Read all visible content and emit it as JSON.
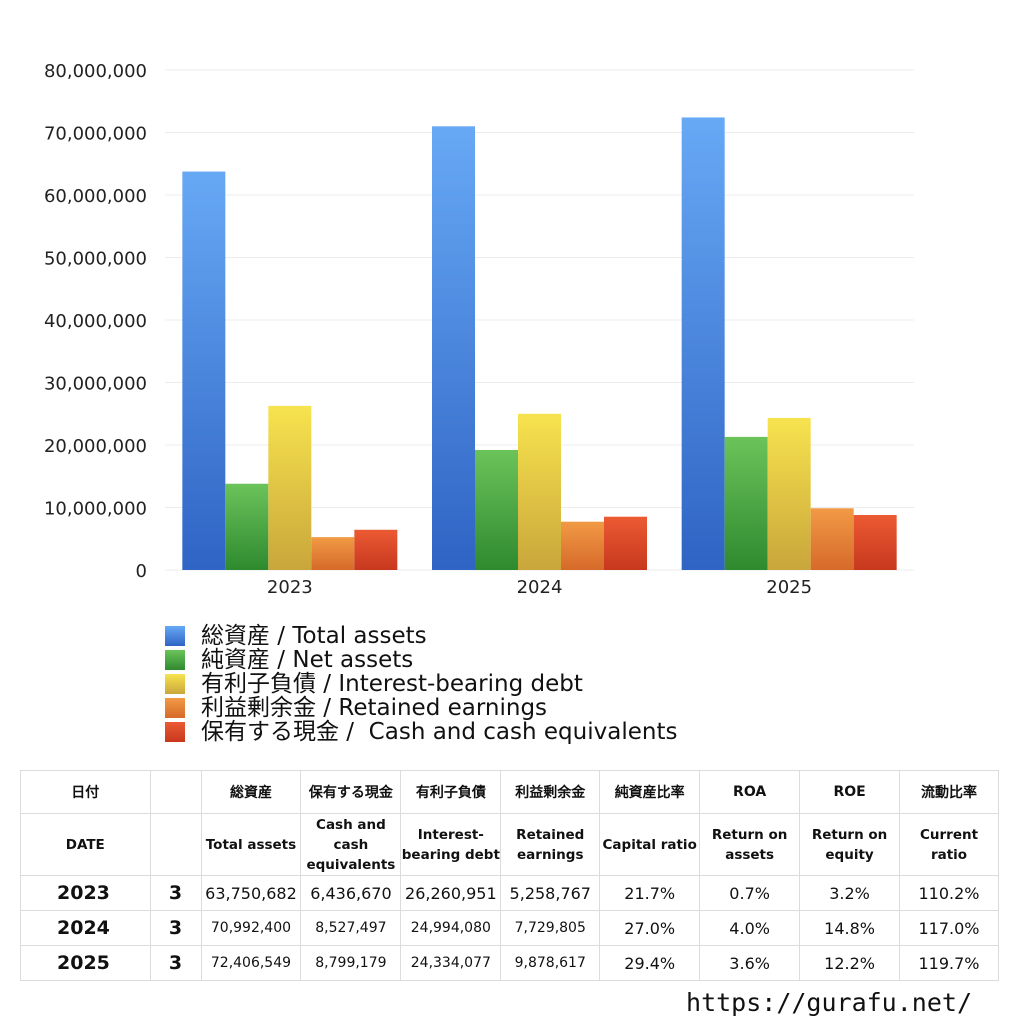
{
  "chart_data": {
    "type": "bar",
    "categories": [
      "2023",
      "2024",
      "2025"
    ],
    "ylim": [
      0,
      80000000
    ],
    "yticks": [
      0,
      10000000,
      20000000,
      30000000,
      40000000,
      50000000,
      60000000,
      70000000,
      80000000
    ],
    "ytick_labels": [
      "0",
      "10,000,000",
      "20,000,000",
      "30,000,000",
      "40,000,000",
      "50,000,000",
      "60,000,000",
      "70,000,000",
      "80,000,000"
    ],
    "grid": true,
    "legend_position": "bottom",
    "series": [
      {
        "name": "総資産 / Total assets",
        "values": [
          63750682,
          70992400,
          72406549
        ],
        "color_top": "#67a9f5",
        "color_bottom": "#2f63c4"
      },
      {
        "name": "純資産 / Net assets",
        "values": [
          13800000,
          19200000,
          21300000
        ],
        "color_top": "#6bc35a",
        "color_bottom": "#2f8a2f"
      },
      {
        "name": "有利子負債 / Interest-bearing debt",
        "values": [
          26260951,
          24994080,
          24334077
        ],
        "color_top": "#f7e34e",
        "color_bottom": "#c9a63b"
      },
      {
        "name": "利益剰余金 / Retained earnings",
        "values": [
          5258767,
          7729805,
          9878617
        ],
        "color_top": "#f19a45",
        "color_bottom": "#d66a2a"
      },
      {
        "name": "保有する現金 /  Cash and cash equivalents",
        "values": [
          6436670,
          8527497,
          8799179
        ],
        "color_top": "#ec5a33",
        "color_bottom": "#c7381e"
      }
    ]
  },
  "table": {
    "header_jp": [
      "日付",
      "",
      "総資産",
      "保有する現金",
      "有利子負債",
      "利益剰余金",
      "純資産比率",
      "ROA",
      "ROE",
      "流動比率"
    ],
    "header_en": [
      "DATE",
      "",
      "Total assets",
      "Cash and cash equivalents",
      "Interest-bearing debt",
      "Retained earnings",
      "Capital ratio",
      "Return on assets",
      "Return on equity",
      "Current ratio"
    ],
    "rows": [
      [
        "2023",
        "3",
        "63,750,682",
        "6,436,670",
        "26,260,951",
        "5,258,767",
        "21.7%",
        "0.7%",
        "3.2%",
        "110.2%"
      ],
      [
        "2024",
        "3",
        "70,992,400",
        "8,527,497",
        "24,994,080",
        "7,729,805",
        "27.0%",
        "4.0%",
        "14.8%",
        "117.0%"
      ],
      [
        "2025",
        "3",
        "72,406,549",
        "8,799,179",
        "24,334,077",
        "9,878,617",
        "29.4%",
        "3.6%",
        "12.2%",
        "119.7%"
      ]
    ]
  },
  "footer": {
    "url": "https://gurafu.net/"
  }
}
